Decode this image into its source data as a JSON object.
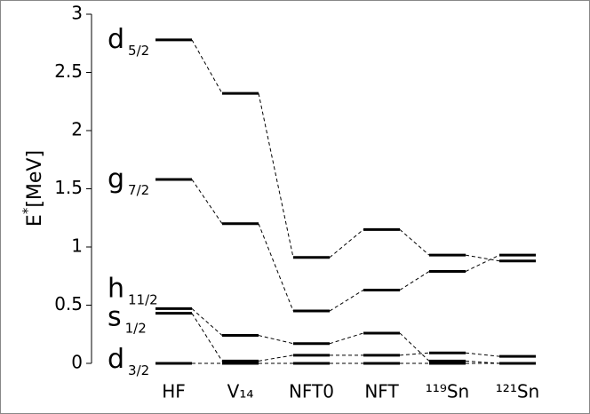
{
  "chart_data": {
    "type": "level-scheme",
    "y_label": {
      "base": "E",
      "sup": "*",
      "unit": "[MeV]"
    },
    "categories": [
      "HF",
      "V₁₄",
      "NFT0",
      "NFT",
      "¹¹⁹Sn",
      "¹²¹Sn"
    ],
    "ylim": [
      0,
      3
    ],
    "yticks": [
      0,
      0.5,
      1,
      1.5,
      2,
      2.5,
      3
    ],
    "color": "#000000",
    "series": [
      {
        "name": "d",
        "sub": "5/2",
        "values": [
          2.78,
          2.32,
          0.91,
          1.15,
          0.93,
          0.88
        ]
      },
      {
        "name": "g",
        "sub": "7/2",
        "values": [
          1.58,
          1.2,
          0.45,
          0.63,
          0.79,
          0.93
        ]
      },
      {
        "name": "h",
        "sub": "11/2",
        "values": [
          0.47,
          0.24,
          0.17,
          0.26,
          0.02,
          0.0
        ]
      },
      {
        "name": "s",
        "sub": "1/2",
        "values": [
          0.43,
          0.02,
          0.07,
          0.07,
          0.09,
          0.06
        ]
      },
      {
        "name": "d",
        "sub": "3/2",
        "values": [
          0.0,
          0.0,
          0.0,
          0.0,
          0.0,
          0.0
        ]
      }
    ]
  }
}
